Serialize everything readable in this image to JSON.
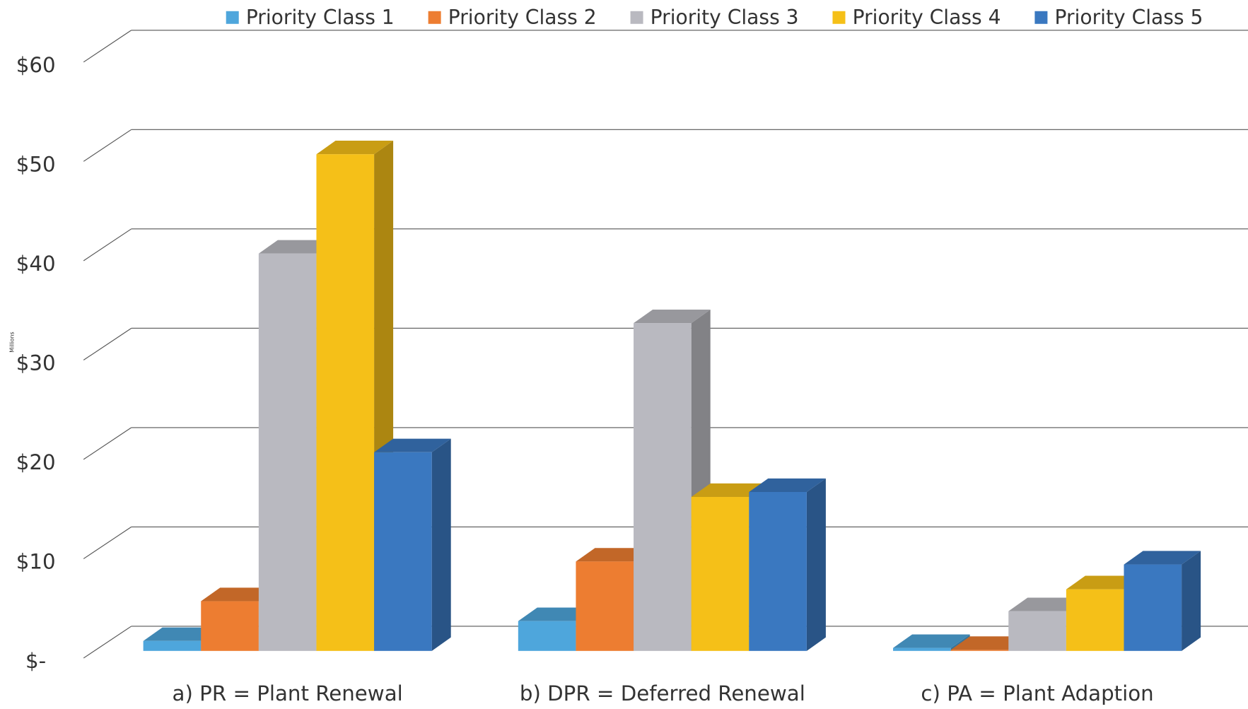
{
  "chart_data": {
    "type": "bar3d",
    "y_axis_label": "Millions",
    "categories": [
      "a) PR = Plant Renewal",
      "b) DPR = Deferred Renewal",
      "c) PA = Plant Adaption"
    ],
    "series": [
      {
        "name": "Priority Class 1",
        "color": "#4ea6dc",
        "values": [
          1,
          3,
          0.3
        ]
      },
      {
        "name": "Priority Class 2",
        "color": "#ed7d31",
        "values": [
          5,
          9,
          0.1
        ]
      },
      {
        "name": "Priority Class 3",
        "color": "#b9b9c0",
        "values": [
          40,
          33,
          4
        ]
      },
      {
        "name": "Priority Class 4",
        "color": "#f5c018",
        "values": [
          50,
          15.5,
          6.2
        ]
      },
      {
        "name": "Priority Class 5",
        "color": "#3a78c0",
        "values": [
          20,
          16,
          8.7
        ]
      }
    ],
    "ylim": [
      0,
      60
    ],
    "yticks": [
      {
        "value": 0,
        "label": "$-"
      },
      {
        "value": 10,
        "label": "$10"
      },
      {
        "value": 20,
        "label": "$20"
      },
      {
        "value": 30,
        "label": "$30"
      },
      {
        "value": 40,
        "label": "$40"
      },
      {
        "value": 50,
        "label": "$50"
      },
      {
        "value": 60,
        "label": "$60"
      }
    ],
    "grid": true,
    "legend": "top"
  }
}
